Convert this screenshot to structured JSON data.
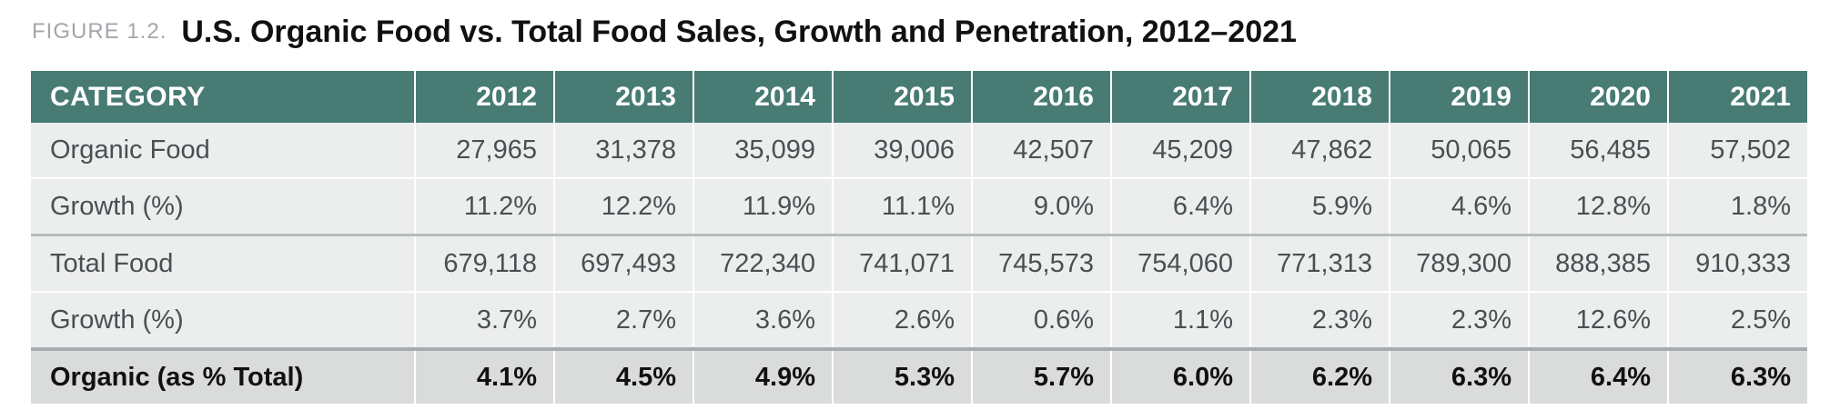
{
  "figure_label": "FIGURE 1.2.",
  "title": "U.S. Organic Food vs. Total Food Sales, Growth and Penetration, 2012–2021",
  "chart_data": {
    "type": "table",
    "title": "U.S. Organic Food vs. Total Food Sales, Growth and Penetration, 2012–2021",
    "columns": [
      "CATEGORY",
      "2012",
      "2013",
      "2014",
      "2015",
      "2016",
      "2017",
      "2018",
      "2019",
      "2020",
      "2021"
    ],
    "rows": [
      {
        "label": "Organic Food",
        "values": [
          "27,965",
          "31,378",
          "35,099",
          "39,006",
          "42,507",
          "45,209",
          "47,862",
          "50,065",
          "56,485",
          "57,502"
        ]
      },
      {
        "label": "Growth (%)",
        "values": [
          "11.2%",
          "12.2%",
          "11.9%",
          "11.1%",
          "9.0%",
          "6.4%",
          "5.9%",
          "4.6%",
          "12.8%",
          "1.8%"
        ]
      },
      {
        "label": "Total Food",
        "values": [
          "679,118",
          "697,493",
          "722,340",
          "741,071",
          "745,573",
          "754,060",
          "771,313",
          "789,300",
          "888,385",
          "910,333"
        ]
      },
      {
        "label": "Growth (%)",
        "values": [
          "3.7%",
          "2.7%",
          "3.6%",
          "2.6%",
          "0.6%",
          "1.1%",
          "2.3%",
          "2.3%",
          "12.6%",
          "2.5%"
        ]
      },
      {
        "label": "Organic (as % Total)",
        "values": [
          "4.1%",
          "4.5%",
          "4.9%",
          "5.3%",
          "5.7%",
          "6.0%",
          "6.2%",
          "6.3%",
          "6.4%",
          "6.3%"
        ]
      }
    ]
  },
  "colors": {
    "header_bg": "#477b73",
    "row_bg": "#eceeed",
    "total_bg": "#d9dcdb"
  }
}
